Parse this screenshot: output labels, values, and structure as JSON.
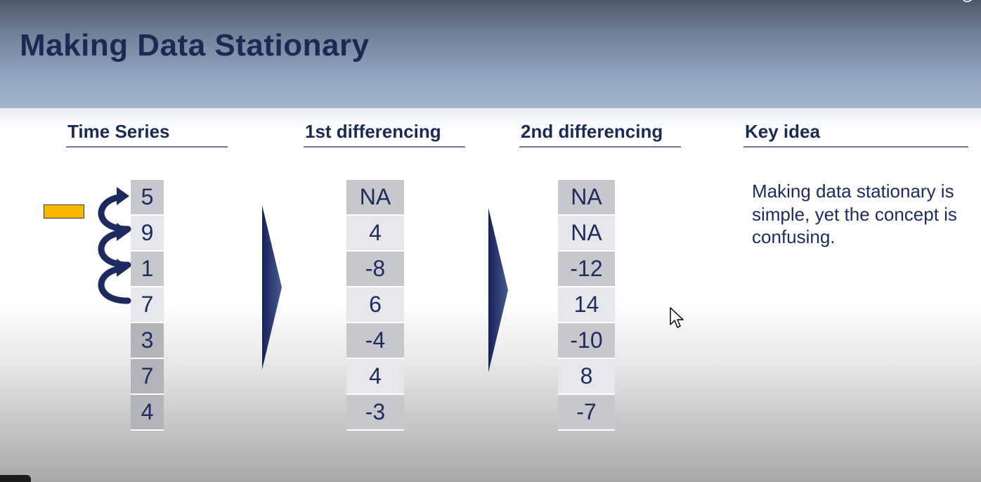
{
  "slide": {
    "title": "Making Data Stationary"
  },
  "columns": {
    "time_series": {
      "heading": "Time Series",
      "values": [
        "5",
        "9",
        "1",
        "7",
        "3",
        "7",
        "4"
      ]
    },
    "first_diff": {
      "heading": "1st differencing",
      "values": [
        "NA",
        "4",
        "-8",
        "6",
        "-4",
        "4",
        "-3"
      ]
    },
    "second_diff": {
      "heading": "2nd differencing",
      "values": [
        "NA",
        "NA",
        "-12",
        "14",
        "-10",
        "8",
        "-7"
      ]
    },
    "key_idea": {
      "heading": "Key idea",
      "text": "Making data stationary is simple, yet the concept is confusing."
    }
  },
  "colors": {
    "title": "#1b2a55",
    "text": "#1e2c5c",
    "arrow": "#1c2a5e",
    "marker": "#f7b700"
  },
  "icons": {
    "corner": "pen-icon",
    "cursor": "mouse-pointer-icon"
  }
}
